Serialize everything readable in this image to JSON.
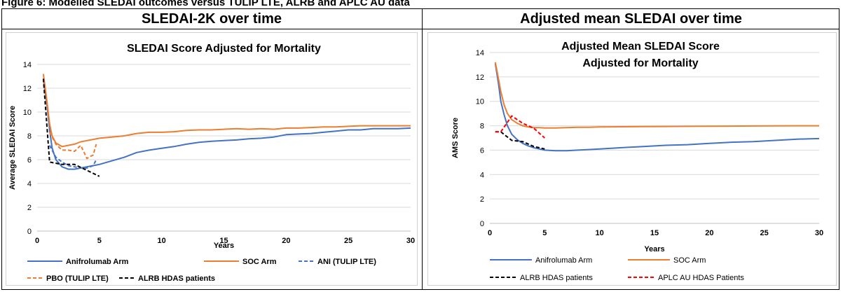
{
  "figure_title": "Figure 6: Modelled SLEDAI outcomes versus TULIP LTE, ALRB and APLC AU data",
  "headers": {
    "left": "SLEDAI-2K over time",
    "right": "Adjusted mean SLEDAI over time"
  },
  "chart_data": [
    {
      "type": "line",
      "title": "SLEDAI Score Adjusted for Mortality",
      "xlabel": "Years",
      "ylabel": "Average SLEDAI Score",
      "xlim": [
        0,
        30
      ],
      "ylim": [
        0,
        14
      ],
      "xticks": [
        0,
        5,
        10,
        15,
        20,
        25,
        30
      ],
      "yticks": [
        0,
        2,
        4,
        6,
        8,
        10,
        12,
        14
      ],
      "grid": "horizontal",
      "legend_position": "bottom",
      "series": [
        {
          "name": "Anifrolumab Arm",
          "color": "#4472C4",
          "dash": "solid",
          "x": [
            0.5,
            0.8,
            1.0,
            1.2,
            1.5,
            2.0,
            2.5,
            3.0,
            3.5,
            4.0,
            4.5,
            5,
            6,
            7,
            8,
            9,
            10,
            11,
            12,
            13,
            14,
            15,
            16,
            17,
            18,
            19,
            20,
            21,
            22,
            23,
            24,
            25,
            26,
            27,
            28,
            29,
            30
          ],
          "y": [
            12.8,
            10.5,
            8.5,
            7.0,
            6.0,
            5.4,
            5.2,
            5.2,
            5.3,
            5.4,
            5.5,
            5.6,
            5.9,
            6.2,
            6.6,
            6.8,
            6.95,
            7.1,
            7.3,
            7.45,
            7.55,
            7.6,
            7.65,
            7.75,
            7.8,
            7.9,
            8.1,
            8.15,
            8.2,
            8.3,
            8.4,
            8.5,
            8.5,
            8.6,
            8.6,
            8.6,
            8.65
          ]
        },
        {
          "name": "SOC Arm",
          "color": "#ED7D31",
          "dash": "solid",
          "x": [
            0.5,
            0.8,
            1.0,
            1.2,
            1.5,
            2.0,
            2.5,
            3.0,
            3.5,
            4.0,
            4.5,
            5,
            6,
            7,
            8,
            9,
            10,
            11,
            12,
            13,
            14,
            15,
            16,
            17,
            18,
            19,
            20,
            21,
            22,
            23,
            24,
            25,
            26,
            27,
            28,
            29,
            30
          ],
          "y": [
            13.2,
            10.8,
            9.0,
            8.0,
            7.4,
            7.1,
            7.2,
            7.3,
            7.5,
            7.6,
            7.7,
            7.8,
            7.9,
            8.0,
            8.2,
            8.3,
            8.3,
            8.35,
            8.45,
            8.5,
            8.5,
            8.55,
            8.6,
            8.55,
            8.6,
            8.55,
            8.65,
            8.65,
            8.7,
            8.75,
            8.75,
            8.8,
            8.85,
            8.85,
            8.85,
            8.85,
            8.85
          ]
        },
        {
          "name": "ANI (TULIP LTE)",
          "color": "#4472C4",
          "dash": "dashed",
          "x": [
            1.0,
            1.5,
            2.0,
            2.5,
            3.0,
            3.5,
            4.0,
            4.5,
            4.75
          ],
          "y": [
            7.2,
            6.2,
            5.8,
            5.5,
            5.4,
            5.3,
            5.3,
            5.5,
            6.0
          ]
        },
        {
          "name": "PBO (TULIP LTE)",
          "color": "#ED7D31",
          "dash": "dashed",
          "x": [
            1.0,
            1.5,
            2.0,
            2.5,
            3.0,
            3.5,
            4.0,
            4.5,
            4.75
          ],
          "y": [
            8.3,
            7.3,
            6.8,
            6.8,
            6.7,
            7.2,
            6.1,
            6.4,
            7.3
          ]
        },
        {
          "name": "ALRB HDAS patients",
          "color": "#000000",
          "dash": "dashed",
          "x": [
            0.5,
            1.0,
            2.0,
            3.0,
            4.0,
            5.0
          ],
          "y": [
            12.8,
            5.8,
            5.6,
            5.6,
            5.1,
            4.6
          ]
        }
      ]
    },
    {
      "type": "line",
      "title": "Adjusted Mean SLEDAI Score Adjusted for Mortality",
      "title_lines": [
        "Adjusted Mean SLEDAI Score",
        "Adjusted for Mortality"
      ],
      "xlabel": "Years",
      "ylabel": "AMS Score",
      "xlim": [
        0,
        30
      ],
      "ylim": [
        0,
        14
      ],
      "xticks": [
        0,
        5,
        10,
        15,
        20,
        25,
        30
      ],
      "yticks": [
        0,
        2,
        4,
        6,
        8,
        10,
        12,
        14
      ],
      "grid": "horizontal",
      "legend_position": "bottom",
      "series": [
        {
          "name": "Anifrolumab Arm",
          "color": "#4472C4",
          "dash": "solid",
          "x": [
            0.5,
            0.8,
            1.0,
            1.3,
            1.6,
            2.0,
            2.5,
            3.0,
            3.5,
            4.0,
            4.5,
            5,
            6,
            7,
            8,
            9,
            10,
            12,
            14,
            16,
            18,
            20,
            22,
            24,
            26,
            28,
            30
          ],
          "y": [
            13.1,
            11.4,
            10.0,
            8.9,
            8.0,
            7.3,
            6.85,
            6.55,
            6.35,
            6.2,
            6.1,
            6.0,
            5.95,
            5.95,
            6.0,
            6.05,
            6.1,
            6.2,
            6.3,
            6.4,
            6.45,
            6.55,
            6.65,
            6.7,
            6.8,
            6.9,
            6.95
          ]
        },
        {
          "name": "SOC Arm",
          "color": "#ED7D31",
          "dash": "solid",
          "x": [
            0.5,
            0.8,
            1.0,
            1.3,
            1.6,
            2.0,
            2.5,
            3.0,
            3.5,
            4.0,
            4.5,
            5,
            6,
            7,
            8,
            9,
            10,
            12,
            14,
            16,
            18,
            20,
            22,
            24,
            26,
            28,
            30
          ],
          "y": [
            13.2,
            11.8,
            10.8,
            9.7,
            9.0,
            8.5,
            8.2,
            8.0,
            7.9,
            7.85,
            7.85,
            7.82,
            7.82,
            7.85,
            7.87,
            7.88,
            7.9,
            7.92,
            7.93,
            7.94,
            7.95,
            7.96,
            7.97,
            7.98,
            7.99,
            8.0,
            8.0
          ]
        },
        {
          "name": "ALRB HDAS patients",
          "color": "#000000",
          "dash": "dashed",
          "x": [
            0.5,
            1.0,
            2.0,
            3.0,
            4.0,
            5.0
          ],
          "y": [
            7.5,
            7.5,
            6.8,
            6.7,
            6.3,
            6.1
          ]
        },
        {
          "name": "APLC AU HDAS Patients",
          "color": "#FF0000",
          "dash": "dashed",
          "x": [
            0.5,
            1.0,
            2.0,
            3.0,
            4.0,
            5.0
          ],
          "y": [
            7.5,
            7.5,
            8.8,
            8.2,
            7.8,
            7.0
          ]
        }
      ]
    }
  ]
}
